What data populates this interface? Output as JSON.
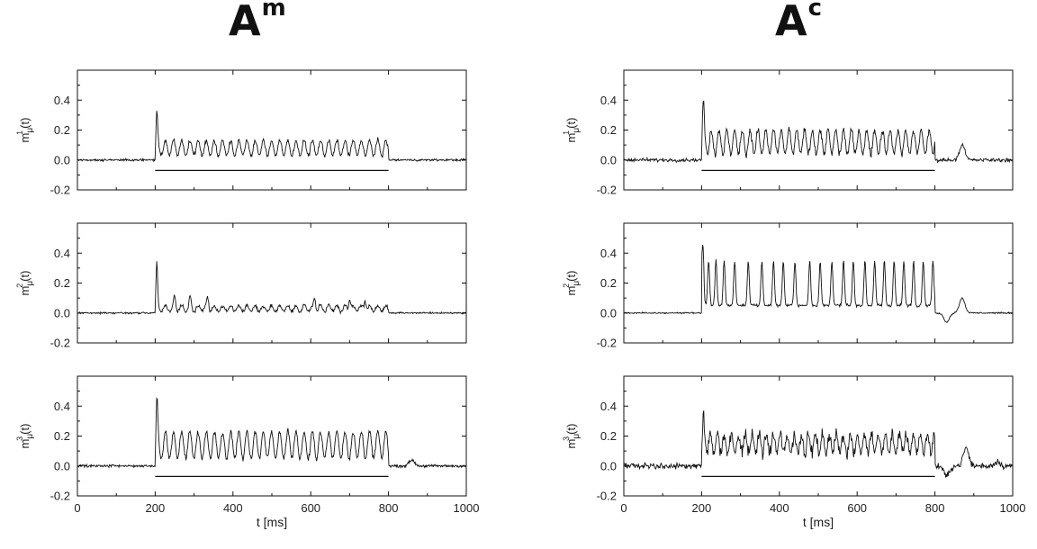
{
  "figure": {
    "panel_titles": [
      {
        "base": "A",
        "sup": "m"
      },
      {
        "base": "A",
        "sup": "c"
      }
    ],
    "xlabel": "t [ms]",
    "ylabels": [
      {
        "base": "m",
        "sub": "μ",
        "sup": "1",
        "suffix": "(t)"
      },
      {
        "base": "m",
        "sub": "μ",
        "sup": "2",
        "suffix": "(t)"
      },
      {
        "base": "m",
        "sub": "μ",
        "sup": "3",
        "suffix": "(t)"
      }
    ],
    "line_color": "#111111"
  },
  "chart_data": [
    {
      "type": "line",
      "column": "A^m",
      "row": 1,
      "xlim": [
        0,
        1000
      ],
      "ylim": [
        -0.2,
        0.6
      ],
      "xticks": [
        "0",
        "200",
        "400",
        "600",
        "800",
        "1000"
      ],
      "show_xtick_labels": false,
      "yticks": [
        "-0.2",
        "0.0",
        "0.2",
        "0.4"
      ],
      "stimulus_bar": {
        "x": [
          200,
          800
        ],
        "y": -0.07
      },
      "trace": {
        "baseline": 0.0,
        "stim_start": 200,
        "stim_end": 800,
        "onset_peak": 0.31,
        "mean": 0.08,
        "osc_amp": 0.05,
        "osc_period_ms": 21,
        "osc_decay": 0.0,
        "noise": 0.012,
        "peak_times": [],
        "peak_amp": 0.0,
        "post_bumps": []
      }
    },
    {
      "type": "line",
      "column": "A^m",
      "row": 2,
      "xlim": [
        0,
        1000
      ],
      "ylim": [
        -0.2,
        0.6
      ],
      "xticks": [
        "0",
        "200",
        "400",
        "600",
        "800",
        "1000"
      ],
      "show_xtick_labels": false,
      "yticks": [
        "-0.2",
        "0.0",
        "0.2",
        "0.4"
      ],
      "trace": {
        "baseline": 0.0,
        "stim_start": 200,
        "stim_end": 800,
        "onset_peak": 0.33,
        "mean": 0.03,
        "osc_amp": 0.02,
        "osc_period_ms": 21,
        "osc_decay": 0.0,
        "noise": 0.01,
        "peak_times": [
          250,
          290,
          335,
          610,
          700,
          740
        ],
        "peak_amp": 0.07,
        "post_bumps": []
      }
    },
    {
      "type": "line",
      "column": "A^m",
      "row": 3,
      "xlim": [
        0,
        1000
      ],
      "ylim": [
        -0.2,
        0.6
      ],
      "xticks": [
        "0",
        "200",
        "400",
        "600",
        "800",
        "1000"
      ],
      "show_xtick_labels": true,
      "yticks": [
        "-0.2",
        "0.0",
        "0.2",
        "0.4"
      ],
      "stimulus_bar": {
        "x": [
          200,
          800
        ],
        "y": -0.07
      },
      "trace": {
        "baseline": 0.0,
        "stim_start": 200,
        "stim_end": 800,
        "onset_peak": 0.42,
        "mean": 0.14,
        "osc_amp": 0.09,
        "osc_period_ms": 21,
        "osc_decay": 0.0,
        "noise": 0.015,
        "peak_times": [],
        "peak_amp": 0.0,
        "post_bumps": [
          [
            860,
            0.04
          ]
        ]
      }
    },
    {
      "type": "line",
      "column": "A^c",
      "row": 1,
      "xlim": [
        0,
        1000
      ],
      "ylim": [
        -0.2,
        0.6
      ],
      "xticks": [
        "0",
        "200",
        "400",
        "600",
        "800",
        "1000"
      ],
      "show_xtick_labels": false,
      "yticks": [
        "-0.2",
        "0.0",
        "0.2",
        "0.4"
      ],
      "stimulus_bar": {
        "x": [
          200,
          800
        ],
        "y": -0.07
      },
      "trace": {
        "baseline": 0.0,
        "stim_start": 200,
        "stim_end": 800,
        "onset_peak": 0.37,
        "mean": 0.12,
        "osc_amp": 0.08,
        "osc_period_ms": 20,
        "osc_decay": 0.0,
        "noise": 0.02,
        "peak_times": [],
        "peak_amp": 0.0,
        "post_bumps": [
          [
            870,
            0.1
          ]
        ]
      }
    },
    {
      "type": "line",
      "column": "A^c",
      "row": 2,
      "xlim": [
        0,
        1000
      ],
      "ylim": [
        -0.2,
        0.6
      ],
      "xticks": [
        "0",
        "200",
        "400",
        "600",
        "800",
        "1000"
      ],
      "show_xtick_labels": false,
      "yticks": [
        "-0.2",
        "0.0",
        "0.2",
        "0.4"
      ],
      "trace": {
        "baseline": 0.0,
        "stim_start": 200,
        "stim_end": 800,
        "onset_peak": 0.38,
        "mean": 0.05,
        "osc_amp": 0.0,
        "osc_period_ms": 37,
        "osc_decay": 0.0,
        "noise": 0.008,
        "peak_times": [
          200,
          218,
          237,
          258,
          285,
          320,
          355,
          385,
          410,
          440,
          478,
          505,
          535,
          565,
          590,
          620,
          645,
          670,
          695,
          720,
          745,
          770,
          795
        ],
        "peak_amp": 0.3,
        "post_bumps": [
          [
            830,
            -0.06
          ],
          [
            870,
            0.1
          ]
        ]
      }
    },
    {
      "type": "line",
      "column": "A^c",
      "row": 3,
      "xlim": [
        0,
        1000
      ],
      "ylim": [
        -0.2,
        0.6
      ],
      "xticks": [
        "0",
        "200",
        "400",
        "600",
        "800",
        "1000"
      ],
      "show_xtick_labels": true,
      "yticks": [
        "-0.2",
        "0.0",
        "0.2",
        "0.4"
      ],
      "stimulus_bar": {
        "x": [
          200,
          800
        ],
        "y": -0.07
      },
      "trace": {
        "baseline": 0.0,
        "stim_start": 200,
        "stim_end": 800,
        "onset_peak": 0.35,
        "mean": 0.15,
        "osc_amp": 0.06,
        "osc_period_ms": 18,
        "osc_decay": 0.0,
        "noise": 0.035,
        "peak_times": [],
        "peak_amp": 0.0,
        "post_bumps": [
          [
            830,
            -0.07
          ],
          [
            880,
            0.12
          ],
          [
            960,
            0.03
          ]
        ]
      }
    }
  ]
}
